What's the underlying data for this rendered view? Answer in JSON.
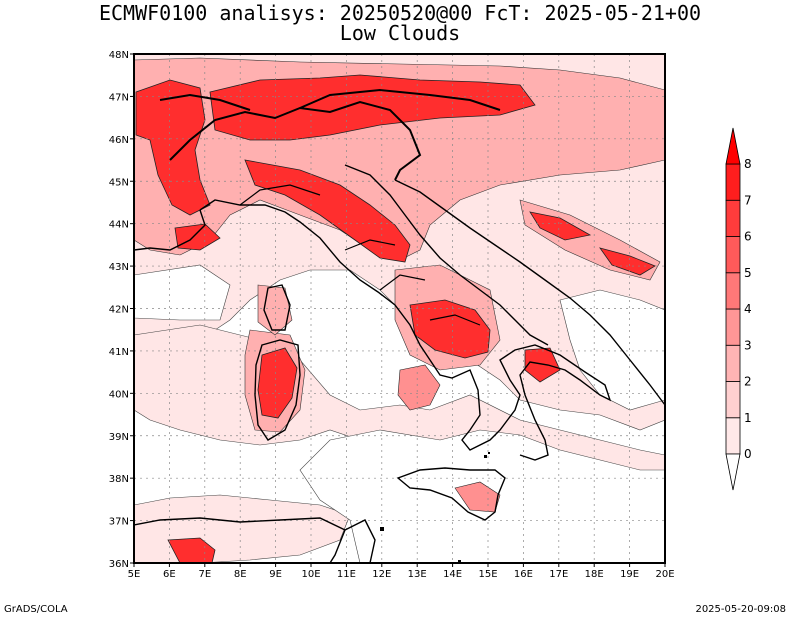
{
  "header": {
    "title_line1": "ECMWF0100 analisys: 20250520@00 FcT: 2025-05-21+00",
    "title_line2": "Low Clouds"
  },
  "footer": {
    "left": "GrADS/COLA",
    "right": "2025-05-20-09:08"
  },
  "map": {
    "lon_labels": [
      "5E",
      "6E",
      "7E",
      "8E",
      "9E",
      "10E",
      "11E",
      "12E",
      "13E",
      "14E",
      "15E",
      "16E",
      "17E",
      "18E",
      "19E",
      "20E"
    ],
    "lat_labels": [
      "36N",
      "37N",
      "38N",
      "39N",
      "40N",
      "41N",
      "42N",
      "43N",
      "44N",
      "45N",
      "46N",
      "47N",
      "48N"
    ],
    "lon_range": [
      5,
      20
    ],
    "lat_range": [
      36,
      48
    ],
    "grid": true
  },
  "colorbar": {
    "levels": [
      "0",
      "1",
      "2",
      "3",
      "4",
      "5",
      "6",
      "7",
      "8"
    ],
    "colors": [
      "#ffe8e8",
      "#ffd0d0",
      "#ffb4b4",
      "#ff9696",
      "#ff7878",
      "#ff5a5a",
      "#ff3c3c",
      "#ff1e1e"
    ]
  },
  "colors": {
    "background": "#ffffff",
    "coast": "#000000"
  }
}
